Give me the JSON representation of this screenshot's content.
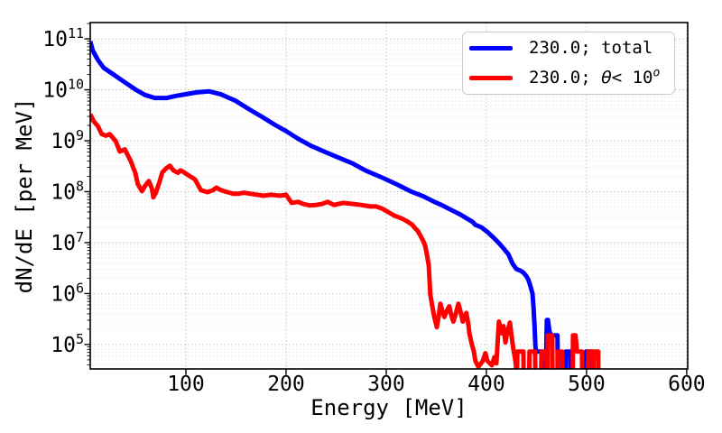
{
  "chart_data": {
    "type": "line",
    "title": "",
    "xlabel": "Energy [MeV]",
    "ylabel": "dN/dE [per MeV]",
    "yscale": "log",
    "xlim": [
      4.5,
      601
    ],
    "ylim_log10": [
      4.52,
      11.32
    ],
    "x_ticks": [
      100,
      200,
      300,
      400,
      500,
      600
    ],
    "x_tick_labels": [
      "100",
      "200",
      "300",
      "400",
      "500",
      "600"
    ],
    "y_tick_base": "10",
    "y_tick_exponents": [
      5,
      6,
      7,
      8,
      9,
      10,
      11
    ],
    "grid": {
      "major": true,
      "minor_y": true,
      "style": "dotted"
    },
    "legend": {
      "position": "upper right",
      "entries": [
        {
          "prefix": "230.0; total",
          "theta": "",
          "mid": "",
          "sup": "",
          "color": "#0000ff"
        },
        {
          "prefix": "230.0; ",
          "theta": "θ",
          "mid": "< 10",
          "sup": "o",
          "color": "#ff0000"
        }
      ]
    },
    "series": [
      {
        "name": "230.0; total",
        "color": "#0000ff",
        "points_E_log10dNdE": [
          [
            4.5,
            10.95
          ],
          [
            7,
            10.77
          ],
          [
            12,
            10.59
          ],
          [
            18,
            10.43
          ],
          [
            27,
            10.31
          ],
          [
            38,
            10.16
          ],
          [
            50,
            10.0
          ],
          [
            59,
            9.9
          ],
          [
            69,
            9.84
          ],
          [
            81,
            9.84
          ],
          [
            90,
            9.88
          ],
          [
            99,
            9.91
          ],
          [
            111,
            9.95
          ],
          [
            123,
            9.97
          ],
          [
            135,
            9.91
          ],
          [
            149,
            9.79
          ],
          [
            162,
            9.63
          ],
          [
            176,
            9.47
          ],
          [
            189,
            9.31
          ],
          [
            200,
            9.19
          ],
          [
            212,
            9.04
          ],
          [
            225,
            8.9
          ],
          [
            239,
            8.78
          ],
          [
            252,
            8.67
          ],
          [
            266,
            8.56
          ],
          [
            279,
            8.42
          ],
          [
            293,
            8.3
          ],
          [
            300,
            8.24
          ],
          [
            311,
            8.14
          ],
          [
            324,
            8.01
          ],
          [
            338,
            7.9
          ],
          [
            347,
            7.81
          ],
          [
            356,
            7.73
          ],
          [
            365,
            7.64
          ],
          [
            374,
            7.55
          ],
          [
            380,
            7.48
          ],
          [
            386,
            7.41
          ],
          [
            389,
            7.35
          ],
          [
            395,
            7.3
          ],
          [
            401,
            7.21
          ],
          [
            407,
            7.1
          ],
          [
            413,
            6.98
          ],
          [
            417,
            6.89
          ],
          [
            422,
            6.77
          ],
          [
            424,
            6.68
          ],
          [
            426,
            6.59
          ],
          [
            430,
            6.48
          ],
          [
            434,
            6.45
          ],
          [
            437,
            6.41
          ],
          [
            440,
            6.34
          ],
          [
            442,
            6.27
          ],
          [
            444,
            6.14
          ],
          [
            446,
            6.0
          ],
          [
            447,
            5.75
          ],
          [
            448,
            5.4
          ],
          [
            449,
            4.95
          ],
          [
            449.5,
            4.86
          ],
          [
            455,
            4.86
          ],
          [
            455.2,
            4.3
          ],
          [
            459.3,
            4.3
          ],
          [
            460.3,
            5.48
          ],
          [
            461.5,
            5.48
          ],
          [
            463,
            5.25
          ],
          [
            465,
            5.18
          ],
          [
            471,
            5.18
          ],
          [
            471.3,
            4.3
          ],
          [
            479,
            4.3
          ],
          [
            479.3,
            4.86
          ],
          [
            483.8,
            4.86
          ],
          [
            484,
            4.3
          ],
          [
            499.2,
            4.3
          ],
          [
            499.5,
            4.86
          ],
          [
            504,
            4.86
          ],
          [
            504.2,
            4.3
          ]
        ]
      },
      {
        "name": "230.0; θ< 10o",
        "color": "#ff0000",
        "points_E_log10dNdE": [
          [
            4.5,
            9.52
          ],
          [
            8,
            9.38
          ],
          [
            12,
            9.29
          ],
          [
            16,
            9.13
          ],
          [
            20,
            9.1
          ],
          [
            24,
            9.13
          ],
          [
            30,
            8.99
          ],
          [
            34,
            8.79
          ],
          [
            39,
            8.83
          ],
          [
            45,
            8.6
          ],
          [
            49.5,
            8.37
          ],
          [
            52,
            8.15
          ],
          [
            56,
            8.01
          ],
          [
            59.5,
            8.12
          ],
          [
            63,
            8.21
          ],
          [
            66,
            8.06
          ],
          [
            67.5,
            7.89
          ],
          [
            70,
            7.98
          ],
          [
            73,
            8.15
          ],
          [
            76.5,
            8.38
          ],
          [
            81,
            8.47
          ],
          [
            84,
            8.51
          ],
          [
            87.5,
            8.42
          ],
          [
            92,
            8.37
          ],
          [
            94.5,
            8.42
          ],
          [
            98,
            8.38
          ],
          [
            103.5,
            8.31
          ],
          [
            109,
            8.24
          ],
          [
            115,
            8.03
          ],
          [
            121.5,
            7.99
          ],
          [
            127,
            8.03
          ],
          [
            130.5,
            8.08
          ],
          [
            135,
            8.03
          ],
          [
            141.5,
            7.99
          ],
          [
            147,
            7.96
          ],
          [
            153,
            7.96
          ],
          [
            158,
            7.98
          ],
          [
            164,
            7.96
          ],
          [
            171,
            7.94
          ],
          [
            177.5,
            7.92
          ],
          [
            185,
            7.94
          ],
          [
            194,
            7.92
          ],
          [
            200,
            7.94
          ],
          [
            205.5,
            7.78
          ],
          [
            212,
            7.8
          ],
          [
            217,
            7.76
          ],
          [
            223.5,
            7.73
          ],
          [
            230,
            7.74
          ],
          [
            236,
            7.76
          ],
          [
            241.5,
            7.8
          ],
          [
            248,
            7.74
          ],
          [
            257,
            7.78
          ],
          [
            266,
            7.76
          ],
          [
            275,
            7.74
          ],
          [
            284,
            7.71
          ],
          [
            290,
            7.71
          ],
          [
            295.5,
            7.67
          ],
          [
            302,
            7.6
          ],
          [
            308,
            7.53
          ],
          [
            313.5,
            7.49
          ],
          [
            317,
            7.46
          ],
          [
            321.5,
            7.41
          ],
          [
            326,
            7.35
          ],
          [
            329,
            7.28
          ],
          [
            331.5,
            7.23
          ],
          [
            334,
            7.14
          ],
          [
            337,
            7.03
          ],
          [
            339,
            6.93
          ],
          [
            340.5,
            6.78
          ],
          [
            342.5,
            6.55
          ],
          [
            343.2,
            6.28
          ],
          [
            344,
            5.98
          ],
          [
            346,
            5.75
          ],
          [
            348,
            5.54
          ],
          [
            350.5,
            5.34
          ],
          [
            352.5,
            5.57
          ],
          [
            354,
            5.8
          ],
          [
            356,
            5.66
          ],
          [
            358,
            5.54
          ],
          [
            360.5,
            5.66
          ],
          [
            363,
            5.75
          ],
          [
            365,
            5.57
          ],
          [
            367,
            5.45
          ],
          [
            369.5,
            5.61
          ],
          [
            372,
            5.8
          ],
          [
            374,
            5.66
          ],
          [
            376.5,
            5.45
          ],
          [
            378.5,
            5.57
          ],
          [
            380,
            5.62
          ],
          [
            382,
            5.39
          ],
          [
            383,
            5.22
          ],
          [
            385,
            5.04
          ],
          [
            387.5,
            4.86
          ],
          [
            389,
            4.68
          ],
          [
            392,
            4.56
          ],
          [
            396.5,
            4.68
          ],
          [
            399,
            4.83
          ],
          [
            401,
            4.68
          ],
          [
            405.5,
            4.59
          ],
          [
            408,
            4.75
          ],
          [
            410,
            4.63
          ],
          [
            412.5,
            5.45
          ],
          [
            415.5,
            5.22
          ],
          [
            417,
            5.36
          ],
          [
            419,
            5.04
          ],
          [
            421,
            5.26
          ],
          [
            423.5,
            5.43
          ],
          [
            425,
            5.18
          ],
          [
            427,
            4.9
          ],
          [
            429,
            4.68
          ],
          [
            430.5,
            4.4
          ],
          [
            431,
            4.86
          ],
          [
            437,
            4.86
          ],
          [
            437.2,
            4.3
          ],
          [
            442.8,
            4.3
          ],
          [
            443,
            4.86
          ],
          [
            448.6,
            4.86
          ],
          [
            449,
            4.3
          ],
          [
            454.6,
            4.3
          ],
          [
            455,
            4.86
          ],
          [
            459.5,
            4.86
          ],
          [
            459.7,
            4.3
          ],
          [
            461,
            4.3
          ],
          [
            461.3,
            5.18
          ],
          [
            465.8,
            5.18
          ],
          [
            466,
            4.3
          ],
          [
            470.9,
            4.3
          ],
          [
            471.2,
            4.86
          ],
          [
            475.7,
            4.86
          ],
          [
            476,
            4.3
          ],
          [
            486.2,
            4.3
          ],
          [
            486.5,
            5.18
          ],
          [
            489,
            5.18
          ],
          [
            490.5,
            4.86
          ],
          [
            495.5,
            4.86
          ],
          [
            495.7,
            4.3
          ],
          [
            501.5,
            4.3
          ],
          [
            501.8,
            4.86
          ],
          [
            506.3,
            4.86
          ],
          [
            506.4,
            4.4
          ],
          [
            507,
            4.4
          ],
          [
            507.2,
            4.86
          ],
          [
            511.7,
            4.86
          ],
          [
            511.8,
            4.3
          ]
        ]
      }
    ]
  }
}
